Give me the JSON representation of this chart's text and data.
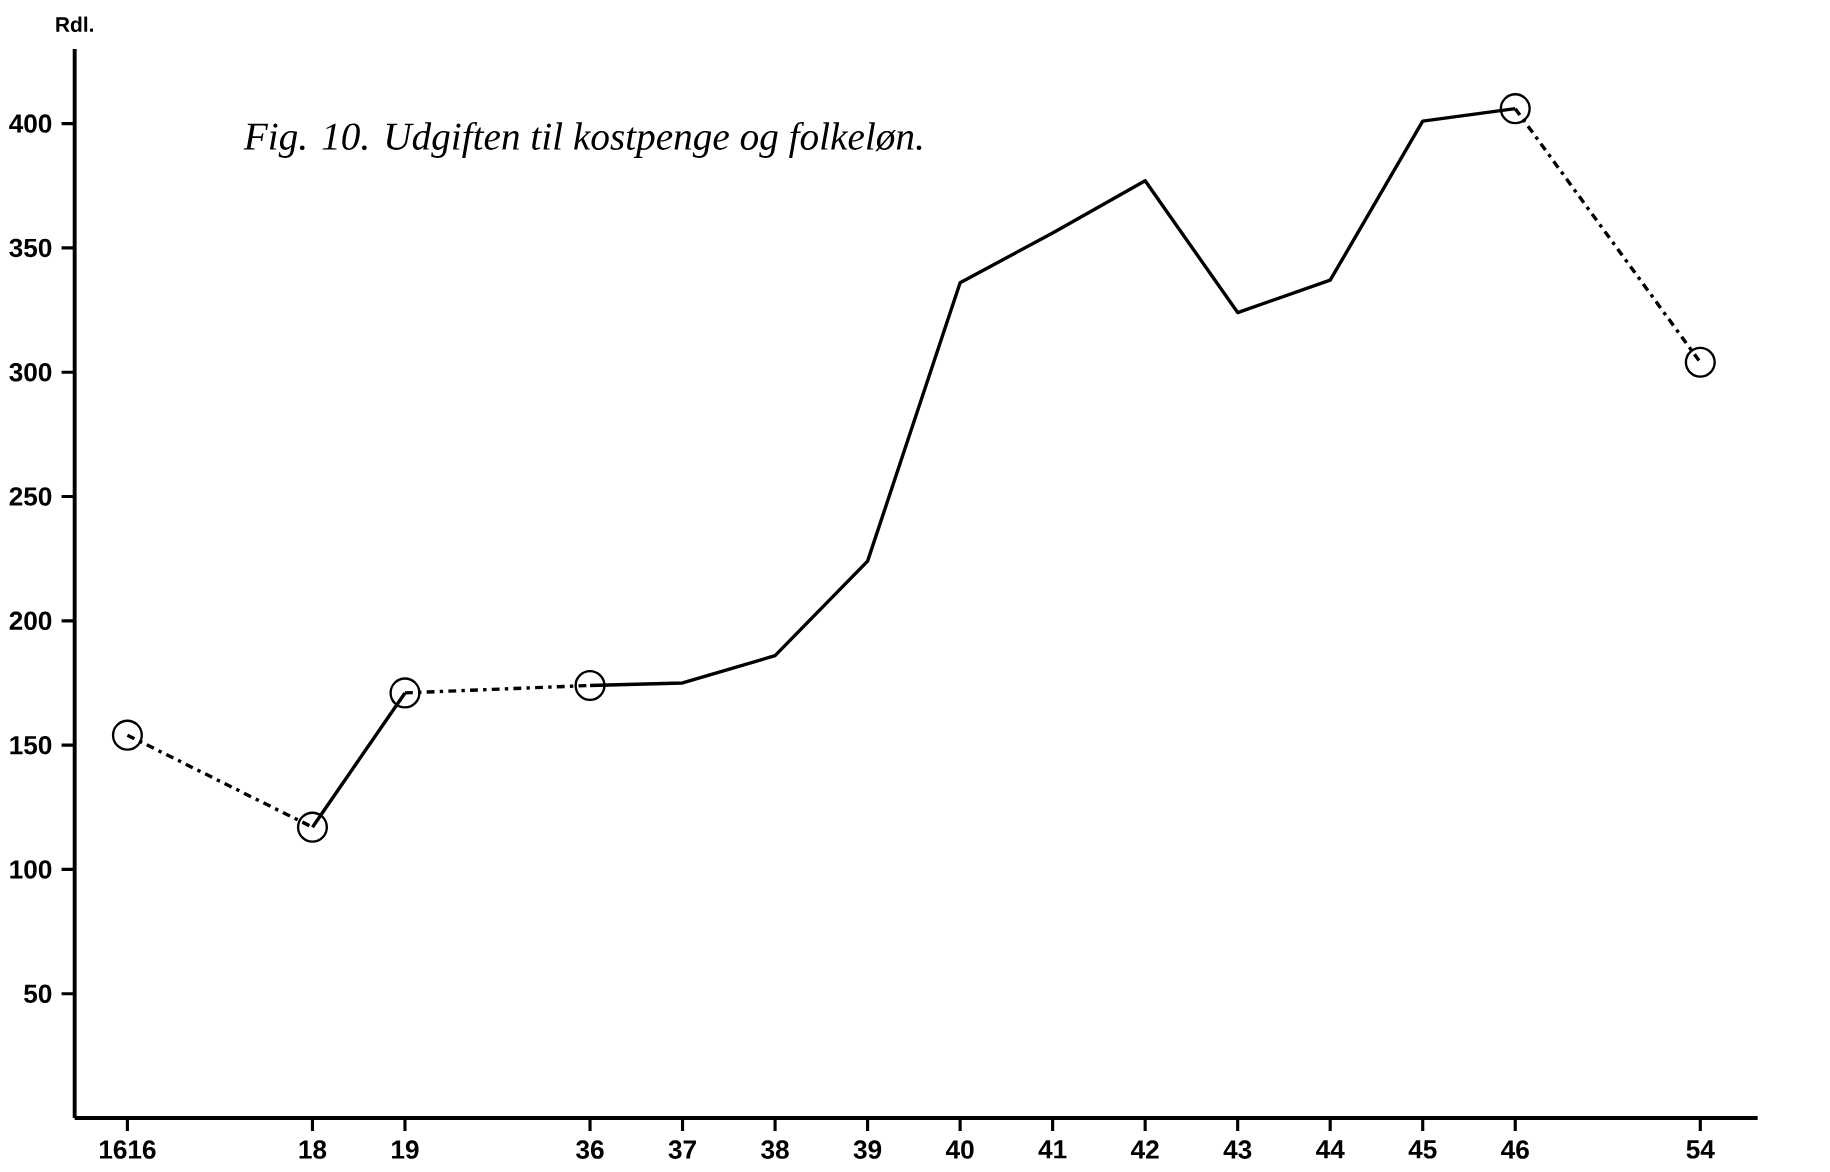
{
  "chart_data": {
    "type": "line",
    "title": "Fig. 10. Udgiften til kostpenge og folkeløn.",
    "ylabel": "Rdl.",
    "categories": [
      "1616",
      null,
      "18",
      "19",
      null,
      "36",
      "37",
      "38",
      "39",
      "40",
      "41",
      "42",
      "43",
      "44",
      "45",
      "46",
      null,
      "54"
    ],
    "series": [
      {
        "color": "#000000",
        "line_style": "dashed",
        "marker": "circle",
        "values": [
          154,
          null,
          117,
          null,
          null,
          null,
          null,
          null,
          null,
          null,
          null,
          null,
          null,
          null,
          null,
          null,
          null,
          null
        ]
      },
      {
        "color": "#000000",
        "line_style": "solid",
        "values": [
          null,
          null,
          117,
          171,
          null,
          null,
          null,
          null,
          null,
          null,
          null,
          null,
          null,
          null,
          null,
          null,
          null,
          null
        ]
      },
      {
        "color": "#000000",
        "line_style": "dashed",
        "marker": "circle",
        "values": [
          null,
          null,
          null,
          171,
          null,
          174,
          null,
          null,
          null,
          null,
          null,
          null,
          null,
          null,
          null,
          null,
          null,
          null
        ]
      },
      {
        "color": "#000000",
        "line_style": "solid",
        "values": [
          null,
          null,
          null,
          null,
          null,
          174,
          175,
          186,
          224,
          336,
          356,
          377,
          324,
          337,
          401,
          406,
          null,
          null
        ]
      },
      {
        "color": "#000000",
        "line_style": "dashed",
        "marker": "circle",
        "values": [
          null,
          null,
          null,
          null,
          null,
          null,
          null,
          null,
          null,
          null,
          null,
          null,
          null,
          null,
          null,
          406,
          null,
          304
        ]
      }
    ],
    "ylim": [
      0,
      430
    ],
    "yticks": [
      50,
      100,
      150,
      200,
      250,
      300,
      350,
      400
    ],
    "grid": false
  }
}
